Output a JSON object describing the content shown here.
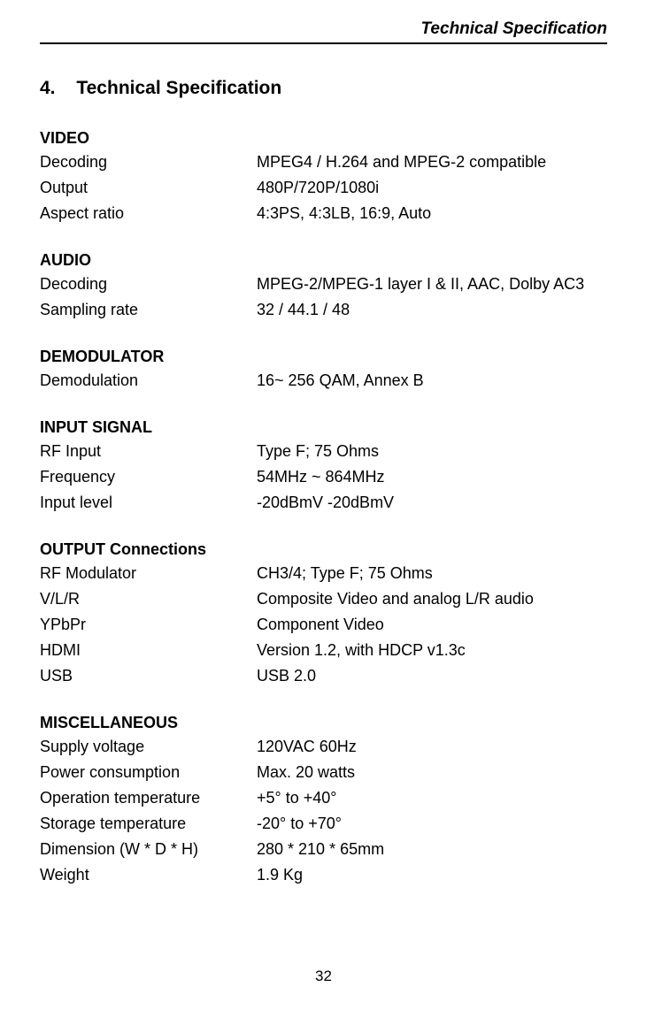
{
  "header": {
    "running_title": "Technical Specification"
  },
  "title": {
    "number": "4.",
    "text": "Technical Specification"
  },
  "sections": {
    "video": {
      "heading": "VIDEO",
      "rows": [
        {
          "label": "Decoding",
          "value": "MPEG4 / H.264 and MPEG-2 compatible"
        },
        {
          "label": "Output",
          "value": "480P/720P/1080i"
        },
        {
          "label": "Aspect ratio",
          "value": "4:3PS, 4:3LB, 16:9, Auto"
        }
      ]
    },
    "audio": {
      "heading": "AUDIO",
      "rows": [
        {
          "label": "Decoding",
          "value": "MPEG-2/MPEG-1 layer I & II, AAC, Dolby AC3"
        },
        {
          "label": "Sampling rate",
          "value": "32 / 44.1 / 48"
        }
      ]
    },
    "demodulator": {
      "heading": "DEMODULATOR",
      "rows": [
        {
          "label": "Demodulation",
          "value": "16~ 256 QAM, Annex B"
        }
      ]
    },
    "input_signal": {
      "heading": "INPUT SIGNAL",
      "rows": [
        {
          "label": "RF Input",
          "value": "Type F; 75 Ohms"
        },
        {
          "label": "Frequency",
          "value": "54MHz ~ 864MHz"
        },
        {
          "label": "Input level",
          "value": "-20dBmV -20dBmV"
        }
      ]
    },
    "output": {
      "heading": "OUTPUT Connections",
      "rows": [
        {
          "label": "RF Modulator",
          "value": "CH3/4; Type F; 75 Ohms"
        },
        {
          "label": "V/L/R",
          "value": "Composite Video and analog L/R audio"
        },
        {
          "label": "YPbPr",
          "value": "Component Video"
        },
        {
          "label": "HDMI",
          "value": "Version 1.2, with HDCP v1.3c"
        },
        {
          "label": "USB",
          "value": "USB 2.0"
        }
      ]
    },
    "misc": {
      "heading": "MISCELLANEOUS",
      "rows": [
        {
          "label": "Supply voltage",
          "value": "120VAC 60Hz"
        },
        {
          "label": "Power consumption",
          "value": "Max. 20 watts"
        },
        {
          "label": "Operation temperature",
          "value": "+5° to +40°"
        },
        {
          "label": "Storage temperature",
          "value": "-20° to +70°"
        },
        {
          "label": "Dimension (W * D * H)",
          "value": "280 * 210 * 65mm"
        },
        {
          "label": "Weight",
          "value": "1.9 Kg"
        }
      ]
    }
  },
  "footer": {
    "page_number": "32"
  }
}
